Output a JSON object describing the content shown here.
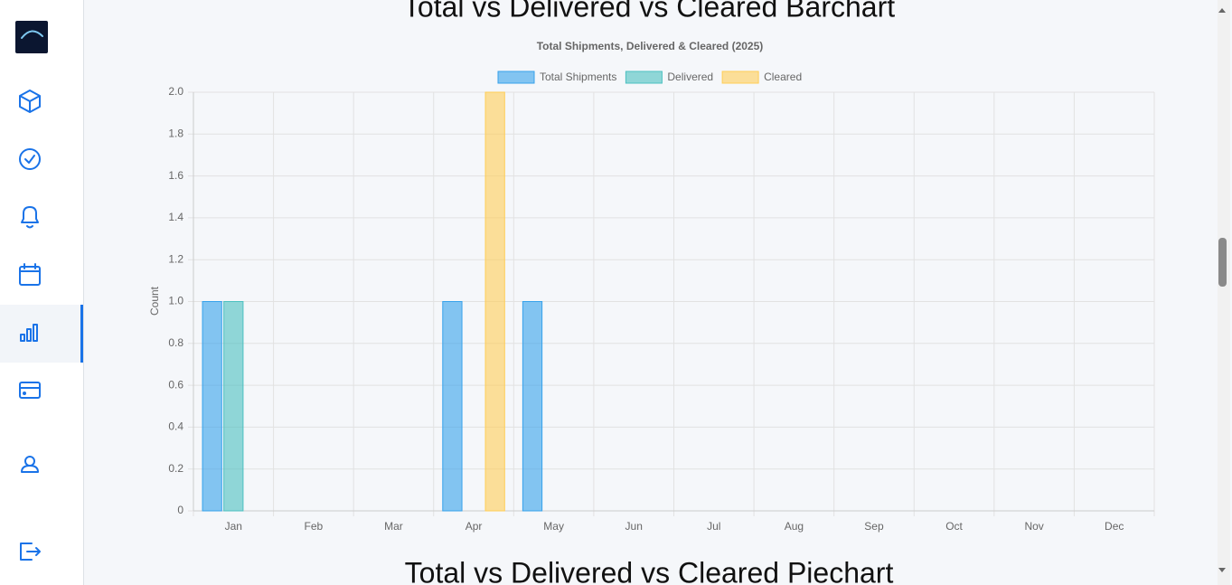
{
  "headings": [
    "Total vs Delivered vs Cleared Barchart",
    "Total vs Delivered vs Cleared Piechart"
  ],
  "chart_data": {
    "type": "bar",
    "title": "Total Shipments, Delivered & Cleared (2025)",
    "y_label": "Count",
    "categories": [
      "Jan",
      "Feb",
      "Mar",
      "Apr",
      "May",
      "Jun",
      "Jul",
      "Aug",
      "Sep",
      "Oct",
      "Nov",
      "Dec"
    ],
    "series": [
      {
        "name": "Total Shipments",
        "color": "#36a2eb",
        "values": [
          1,
          0,
          0,
          1,
          1,
          0,
          0,
          0,
          0,
          0,
          0,
          0
        ]
      },
      {
        "name": "Delivered",
        "color": "#4bc0c0",
        "values": [
          1,
          0,
          0,
          0,
          0,
          0,
          0,
          0,
          0,
          0,
          0,
          0
        ]
      },
      {
        "name": "Cleared",
        "color": "#ffcd56",
        "values": [
          0,
          0,
          0,
          2,
          0,
          0,
          0,
          0,
          0,
          0,
          0,
          0
        ]
      }
    ],
    "ylim": [
      0,
      2
    ],
    "yticks": [
      0,
      0.2,
      0.4,
      0.6,
      0.8,
      {
        "value": 1,
        "label": "1.0"
      },
      1.2,
      1.4,
      1.6,
      1.8,
      {
        "value": 2,
        "label": "2.0"
      }
    ],
    "grid": true,
    "legend": "top"
  }
}
